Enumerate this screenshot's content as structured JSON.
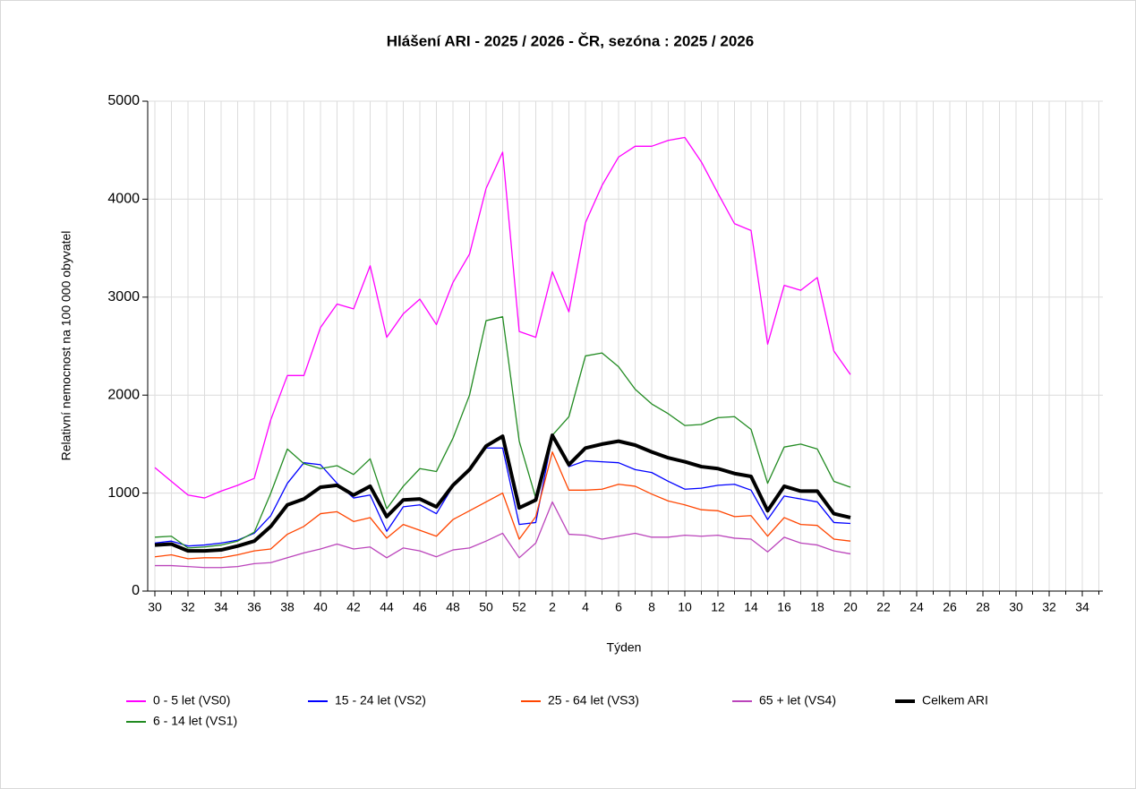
{
  "chart_data": {
    "type": "line",
    "title": "Hlášení ARI - 2025 / 2026 - ČR, sezóna : 2025 / 2026",
    "x_label": "Týden",
    "y_label": "Relativní nemocnost na 100 000 obyvatel",
    "categories": [
      "30",
      null,
      "32",
      null,
      "34",
      null,
      "36",
      null,
      "38",
      null,
      "40",
      null,
      "42",
      null,
      "44",
      null,
      "46",
      null,
      "48",
      null,
      "50",
      null,
      "52",
      null,
      "2",
      null,
      "4",
      null,
      "6",
      null,
      "8",
      null,
      "10",
      null,
      "12",
      null,
      "14",
      null,
      "16",
      null,
      "18",
      null,
      "20",
      null,
      "22",
      null,
      "24",
      null,
      "26",
      null,
      "28",
      null,
      "30",
      null,
      "32",
      null,
      "34",
      null
    ],
    "ylim": [
      0,
      5000
    ],
    "yticks": [
      0,
      1000,
      2000,
      3000,
      4000,
      5000
    ],
    "grid": true,
    "series": [
      {
        "name": "0 - 5 let (VS0)",
        "color": "#ff00ff",
        "values": [
          1260,
          1120,
          980,
          950,
          1020,
          1080,
          1150,
          1750,
          2200,
          2200,
          2690,
          2930,
          2880,
          3320,
          2590,
          2830,
          2980,
          2720,
          3150,
          3440,
          4110,
          4480,
          2650,
          2590,
          3260,
          2850,
          3760,
          4140,
          4430,
          4540,
          4540,
          4600,
          4630,
          4380,
          4060,
          3750,
          3680,
          2520,
          3120,
          3070,
          3200,
          2450,
          2210,
          null,
          null,
          null,
          null,
          null,
          null,
          null,
          null,
          null,
          null,
          null,
          null,
          null,
          null,
          null
        ]
      },
      {
        "name": "15 - 24 let (VS2)",
        "color": "#0000ff",
        "values": [
          490,
          510,
          460,
          470,
          490,
          520,
          590,
          770,
          1100,
          1310,
          1290,
          1100,
          950,
          980,
          610,
          860,
          880,
          790,
          1070,
          1240,
          1460,
          1460,
          680,
          700,
          1580,
          1270,
          1330,
          1320,
          1310,
          1240,
          1210,
          1120,
          1040,
          1050,
          1080,
          1090,
          1030,
          730,
          970,
          940,
          910,
          700,
          690,
          null,
          null,
          null,
          null,
          null,
          null,
          null,
          null,
          null,
          null,
          null,
          null,
          null,
          null,
          null
        ]
      },
      {
        "name": "25 - 64 let (VS3)",
        "color": "#ff4500",
        "values": [
          350,
          370,
          330,
          340,
          340,
          370,
          410,
          430,
          580,
          660,
          790,
          810,
          710,
          750,
          540,
          680,
          620,
          560,
          730,
          820,
          910,
          1000,
          530,
          760,
          1420,
          1030,
          1030,
          1040,
          1090,
          1070,
          990,
          920,
          880,
          830,
          820,
          760,
          770,
          560,
          750,
          680,
          670,
          530,
          510,
          null,
          null,
          null,
          null,
          null,
          null,
          null,
          null,
          null,
          null,
          null,
          null,
          null,
          null,
          null
        ]
      },
      {
        "name": "65 + let (VS4)",
        "color": "#bb44bb",
        "values": [
          260,
          260,
          250,
          240,
          240,
          250,
          280,
          290,
          340,
          390,
          430,
          480,
          430,
          450,
          340,
          440,
          410,
          350,
          420,
          440,
          510,
          590,
          340,
          490,
          910,
          580,
          570,
          530,
          560,
          590,
          550,
          550,
          570,
          560,
          570,
          540,
          530,
          400,
          550,
          490,
          470,
          410,
          380,
          null,
          null,
          null,
          null,
          null,
          null,
          null,
          null,
          null,
          null,
          null,
          null,
          null,
          null,
          null
        ]
      },
      {
        "name": "Celkem ARI",
        "color": "#000000",
        "width": 4,
        "values": [
          470,
          480,
          410,
          410,
          420,
          460,
          510,
          660,
          880,
          940,
          1060,
          1080,
          980,
          1070,
          760,
          930,
          940,
          860,
          1080,
          1240,
          1480,
          1580,
          850,
          930,
          1590,
          1290,
          1460,
          1500,
          1530,
          1490,
          1420,
          1360,
          1320,
          1270,
          1250,
          1200,
          1170,
          820,
          1070,
          1020,
          1020,
          790,
          750,
          null,
          null,
          null,
          null,
          null,
          null,
          null,
          null,
          null,
          null,
          null,
          null,
          null,
          null,
          null
        ]
      },
      {
        "name": "6 - 14 let (VS1)",
        "color": "#228b22",
        "values": [
          550,
          560,
          440,
          450,
          470,
          510,
          600,
          1000,
          1450,
          1300,
          1250,
          1280,
          1190,
          1350,
          840,
          1070,
          1250,
          1220,
          1560,
          2000,
          2760,
          2800,
          1530,
          950,
          1590,
          1780,
          2400,
          2430,
          2290,
          2060,
          1910,
          1810,
          1690,
          1700,
          1770,
          1780,
          1650,
          1100,
          1470,
          1500,
          1450,
          1120,
          1060,
          null,
          null,
          null,
          null,
          null,
          null,
          null,
          null,
          null,
          null,
          null,
          null,
          null,
          null,
          null
        ]
      }
    ]
  }
}
